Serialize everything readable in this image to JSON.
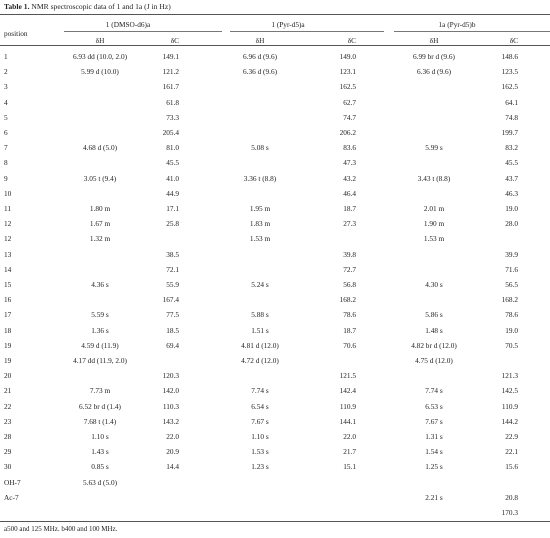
{
  "caption": {
    "label": "Table 1.",
    "text": " NMR spectroscopic data of 1 and 1a (J in Hz)"
  },
  "groups": [
    "1 (DMSO-d6)a",
    "1 (Pyr-d5)a",
    "1a (Pyr-d5)b"
  ],
  "subheaders": [
    "δH",
    "δC",
    "δH",
    "δC",
    "δH",
    "δC"
  ],
  "position_header": "position",
  "rows": [
    [
      "1",
      "6.93 dd (10.0, 2.0)",
      "149.1",
      "6.96 d (9.6)",
      "149.0",
      "6.99 br d (9.6)",
      "148.6"
    ],
    [
      "2",
      "5.99 d (10.0)",
      "121.2",
      "6.36 d (9.6)",
      "123.1",
      "6.36 d (9.6)",
      "123.5"
    ],
    [
      "3",
      "",
      "161.7",
      "",
      "162.5",
      "",
      "162.5"
    ],
    [
      "4",
      "",
      "61.8",
      "",
      "62.7",
      "",
      "64.1"
    ],
    [
      "5",
      "",
      "73.3",
      "",
      "74.7",
      "",
      "74.8"
    ],
    [
      "6",
      "",
      "205.4",
      "",
      "206.2",
      "",
      "199.7"
    ],
    [
      "7",
      "4.68 d (5.0)",
      "81.0",
      "5.08 s",
      "83.6",
      "5.99 s",
      "83.2"
    ],
    [
      "8",
      "",
      "45.5",
      "",
      "47.3",
      "",
      "45.5"
    ],
    [
      "9",
      "3.05 t (9.4)",
      "41.0",
      "3.36 t (8.8)",
      "43.2",
      "3.43 t (8.8)",
      "43.7"
    ],
    [
      "10",
      "",
      "44.9",
      "",
      "46.4",
      "",
      "46.3"
    ],
    [
      "11",
      "1.80 m",
      "17.1",
      "1.95 m",
      "18.7",
      "2.01 m",
      "19.0"
    ],
    [
      "12",
      "1.67 m",
      "25.8",
      "1.83 m",
      "27.3",
      "1.90 m",
      "28.0"
    ],
    [
      "12",
      "1.32 m",
      "",
      "1.53 m",
      "",
      "1.53 m",
      ""
    ],
    [
      "13",
      "",
      "38.5",
      "",
      "39.8",
      "",
      "39.9"
    ],
    [
      "14",
      "",
      "72.1",
      "",
      "72.7",
      "",
      "71.6"
    ],
    [
      "15",
      "4.36 s",
      "55.9",
      "5.24 s",
      "56.8",
      "4.30 s",
      "56.5"
    ],
    [
      "16",
      "",
      "167.4",
      "",
      "168.2",
      "",
      "168.2"
    ],
    [
      "17",
      "5.59 s",
      "77.5",
      "5.88 s",
      "78.6",
      "5.86 s",
      "78.6"
    ],
    [
      "18",
      "1.36 s",
      "18.5",
      "1.51 s",
      "18.7",
      "1.48 s",
      "19.0"
    ],
    [
      "19",
      "4.59 d (11.9)",
      "69.4",
      "4.81 d (12.0)",
      "70.6",
      "4.82 br d (12.0)",
      "70.5"
    ],
    [
      "19",
      "4.17 dd (11.9, 2.0)",
      "",
      "4.72 d (12.0)",
      "",
      "4.75 d (12.0)",
      ""
    ],
    [
      "20",
      "",
      "120.3",
      "",
      "121.5",
      "",
      "121.3"
    ],
    [
      "21",
      "7.73 m",
      "142.0",
      "7.74 s",
      "142.4",
      "7.74 s",
      "142.5"
    ],
    [
      "22",
      "6.52 br d (1.4)",
      "110.3",
      "6.54 s",
      "110.9",
      "6.53 s",
      "110.9"
    ],
    [
      "23",
      "7.68 t (1.4)",
      "143.2",
      "7.67 s",
      "144.1",
      "7.67 s",
      "144.2"
    ],
    [
      "28",
      "1.10 s",
      "22.0",
      "1.10 s",
      "22.0",
      "1.31 s",
      "22.9"
    ],
    [
      "29",
      "1.43 s",
      "20.9",
      "1.53 s",
      "21.7",
      "1.54 s",
      "22.1"
    ],
    [
      "30",
      "0.85 s",
      "14.4",
      "1.23 s",
      "15.1",
      "1.25 s",
      "15.6"
    ],
    [
      "OH-7",
      "5.63 d (5.0)",
      "",
      "",
      "",
      "",
      ""
    ],
    [
      "Ac-7",
      "",
      "",
      "",
      "",
      "2.21 s",
      "20.8"
    ],
    [
      "",
      "",
      "",
      "",
      "",
      "",
      "170.3"
    ]
  ],
  "footnote": "a500 and 125 MHz. b400 and 100 MHz."
}
